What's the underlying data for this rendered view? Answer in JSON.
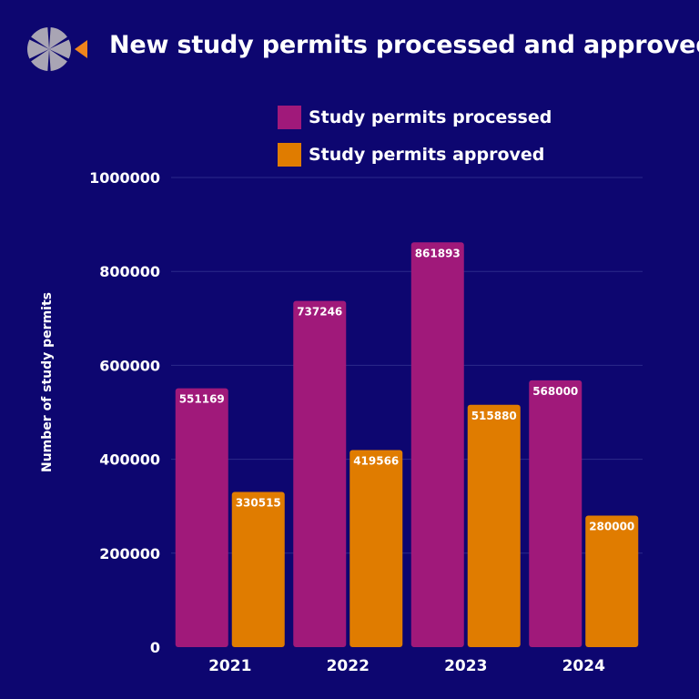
{
  "title": "New study permits processed and approved",
  "logo": {
    "icon": "segmented-circle-logo-icon",
    "colors": {
      "segments": "#a9a5b4",
      "accent": "#f0841c"
    }
  },
  "colors": {
    "background": "#0d0670",
    "gridline": "#2c2a8a",
    "text": "#ffffff"
  },
  "chart_data": {
    "type": "bar",
    "title": "New study permits processed and approved",
    "xlabel": "",
    "ylabel": "Number of study permits",
    "categories": [
      "2021",
      "2022",
      "2023",
      "2024"
    ],
    "series": [
      {
        "name": "Study permits processed",
        "color": "#a0197a",
        "values": [
          551169,
          737246,
          861893,
          568000
        ]
      },
      {
        "name": "Study permits approved",
        "color": "#e07c00",
        "values": [
          330515,
          419566,
          515880,
          280000
        ]
      }
    ],
    "ylim": [
      0,
      1000000
    ],
    "yticks": [
      "0",
      "200000",
      "400000",
      "600000",
      "800000",
      "1000000"
    ],
    "grid": true,
    "legend": "top"
  }
}
